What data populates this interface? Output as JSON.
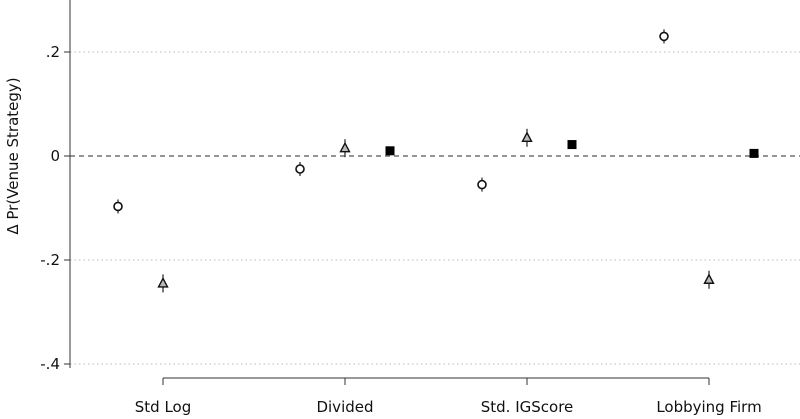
{
  "chart_data": {
    "type": "scatter",
    "title": "",
    "ylabel": "Δ Pr(Venue Strategy)",
    "xlabel": "",
    "ylim": [
      -0.4,
      0.2
    ],
    "yticks": [
      0.2,
      0,
      -0.2,
      -0.4
    ],
    "ytick_labels": [
      ".2",
      "0",
      "-.2",
      "-.4"
    ],
    "grid": "horizontal dotted at y ticks",
    "reference_line": {
      "y": 0,
      "style": "dashed"
    },
    "categories": [
      "Std Log",
      "Divided",
      "Std. IGScore",
      "Lobbying Firm"
    ],
    "series": [
      {
        "marker": "circle",
        "values": [
          -0.097,
          -0.025,
          -0.055,
          0.23
        ]
      },
      {
        "marker": "triangle",
        "values": [
          -0.245,
          0.015,
          0.035,
          -0.238
        ]
      },
      {
        "marker": "square",
        "values": [
          null,
          0.01,
          0.022,
          0.005
        ]
      }
    ]
  }
}
